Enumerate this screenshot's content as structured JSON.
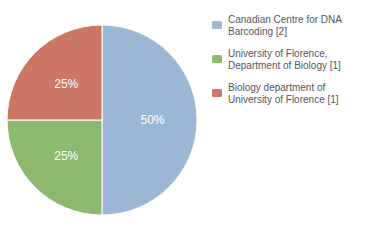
{
  "chart_data": {
    "type": "pie",
    "categories": [
      "Canadian Centre for DNA\nBarcoding [2]",
      "University of Florence,\nDepartment of Biology [1]",
      "Biology department of\nUniversity of Florence [1]"
    ],
    "values": [
      50,
      25,
      25
    ],
    "value_labels": [
      "50%",
      "25%",
      "25%"
    ],
    "colors": [
      "#9bb7d4",
      "#8db870",
      "#cc7766"
    ],
    "data_labels": true,
    "legend": "right"
  }
}
